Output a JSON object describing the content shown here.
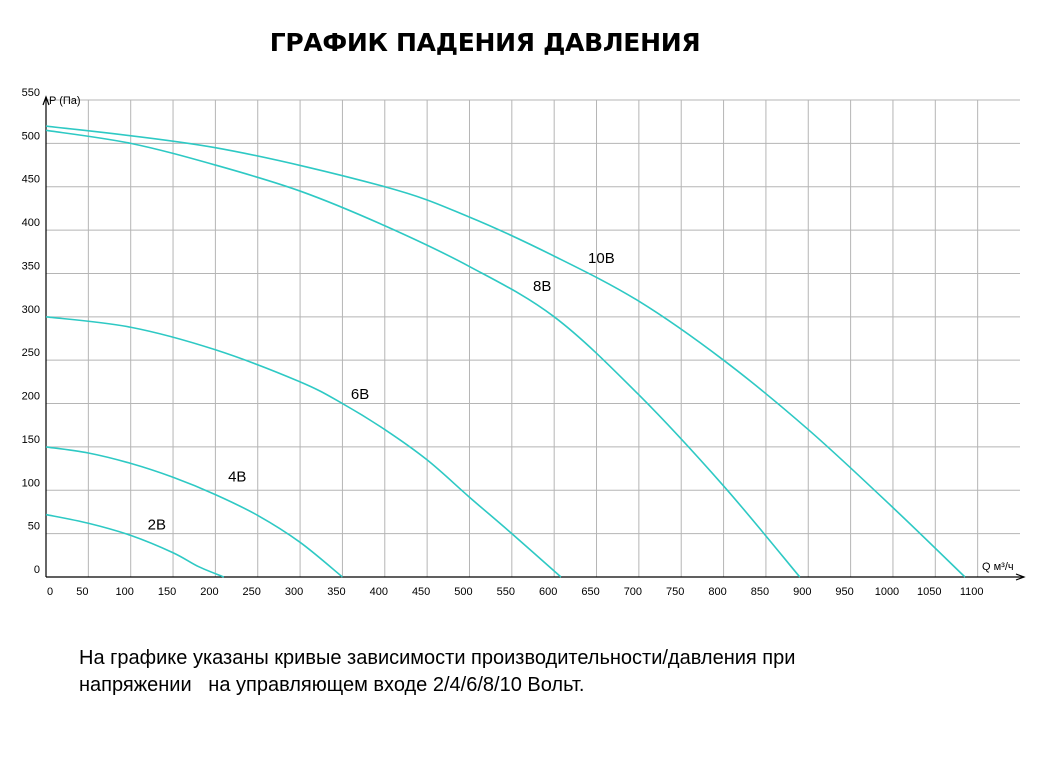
{
  "title": "ГРАФИК ПАДЕНИЯ ДАВЛЕНИЯ",
  "caption": {
    "line1": "На графике указаны кривые зависимости производительности/давления при",
    "line2": "напряжении   на управляющем входе 2/4/6/8/10 Вольт."
  },
  "chart_data": {
    "type": "line",
    "title": "ГРАФИК ПАДЕНИЯ ДАВЛЕНИЯ",
    "xlabel": "Q м³/ч",
    "ylabel": "P (Па)",
    "xlim": [
      0,
      1150
    ],
    "ylim": [
      0,
      550
    ],
    "x_ticks": [
      0,
      50,
      100,
      150,
      200,
      250,
      300,
      350,
      400,
      450,
      500,
      550,
      600,
      650,
      700,
      750,
      800,
      850,
      900,
      950,
      1000,
      1050,
      1100
    ],
    "y_ticks": [
      0,
      50,
      100,
      150,
      200,
      250,
      300,
      350,
      400,
      450,
      500,
      550
    ],
    "grid": true,
    "legend": "inline labels",
    "colors": {
      "series": "#2ec9c4",
      "grid": "#b5b5b5",
      "axis": "#000000"
    },
    "series": [
      {
        "name": "2В",
        "label_at": [
          120,
          55
        ],
        "x": [
          0,
          50,
          100,
          150,
          180,
          210
        ],
        "y": [
          72,
          62,
          48,
          28,
          12,
          0
        ]
      },
      {
        "name": "4В",
        "label_at": [
          215,
          110
        ],
        "x": [
          0,
          50,
          100,
          150,
          200,
          250,
          300,
          350
        ],
        "y": [
          150,
          143,
          131,
          115,
          95,
          71,
          40,
          0
        ]
      },
      {
        "name": "6В",
        "label_at": [
          360,
          205
        ],
        "x": [
          0,
          100,
          200,
          300,
          350,
          400,
          450,
          500,
          550,
          608
        ],
        "y": [
          300,
          288,
          262,
          225,
          200,
          170,
          135,
          92,
          50,
          0
        ]
      },
      {
        "name": "8В",
        "label_at": [
          575,
          330
        ],
        "x": [
          0,
          100,
          200,
          300,
          400,
          500,
          600,
          700,
          800,
          890
        ],
        "y": [
          515,
          500,
          475,
          445,
          405,
          358,
          300,
          210,
          105,
          0
        ]
      },
      {
        "name": "10В",
        "label_at": [
          640,
          362
        ],
        "x": [
          0,
          200,
          400,
          500,
          600,
          700,
          800,
          900,
          1000,
          1085
        ],
        "y": [
          520,
          495,
          450,
          415,
          370,
          318,
          250,
          170,
          80,
          0
        ]
      }
    ]
  }
}
